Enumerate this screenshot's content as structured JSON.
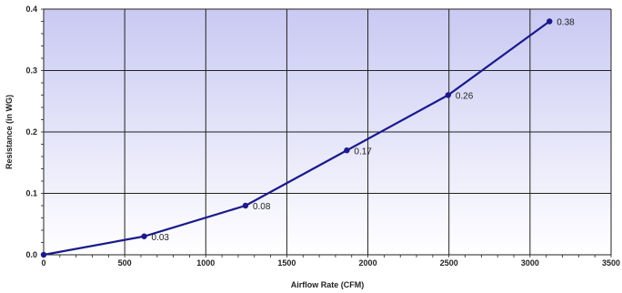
{
  "chart_data": {
    "type": "line",
    "xlabel": "Airflow Rate (CFM)",
    "ylabel": "Resistance (in WG)",
    "xlim": [
      0,
      3500
    ],
    "ylim": [
      0,
      0.4
    ],
    "x_ticks": [
      "0",
      "500",
      "1000",
      "1500",
      "2000",
      "2500",
      "3000",
      "3500"
    ],
    "y_ticks": [
      "0.0",
      "0.1",
      "0.2",
      "0.3",
      "0.4"
    ],
    "grid": true,
    "series": [
      {
        "x": [
          0,
          620,
          1245,
          1870,
          2495,
          3120
        ],
        "y": [
          0,
          0.03,
          0.08,
          0.17,
          0.26,
          0.38
        ],
        "labels": [
          "",
          "0.03",
          "0.08",
          "0.17",
          "0.26",
          "0.38"
        ]
      }
    ],
    "colors": {
      "line": "#1a1a8c",
      "grid": "#222222",
      "background_top": "#c9c9f3",
      "background_bottom": "#ffffff"
    }
  }
}
